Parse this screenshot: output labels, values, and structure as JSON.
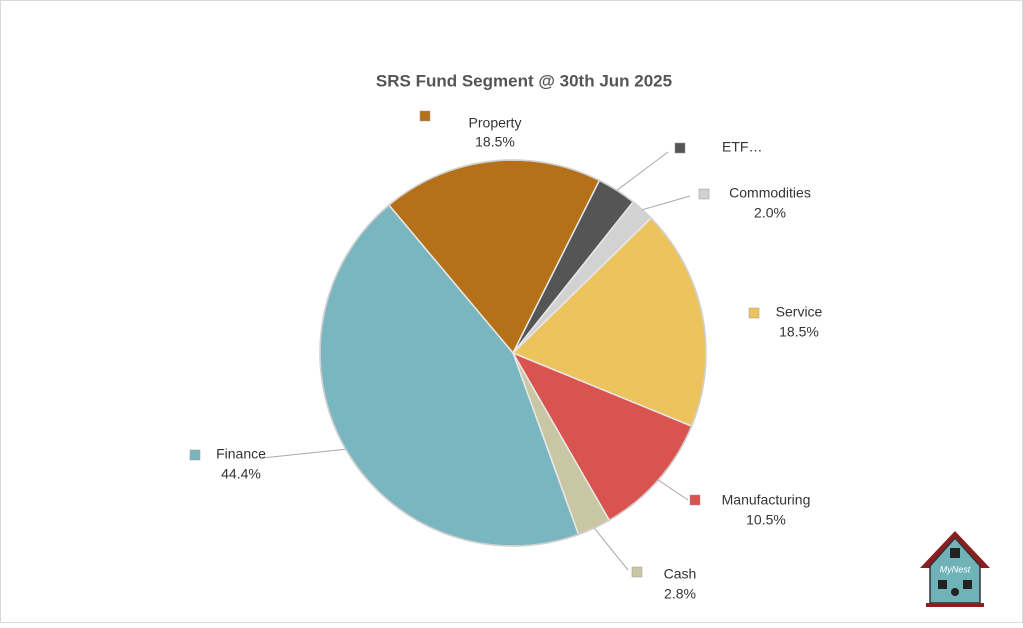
{
  "chart_data": {
    "type": "pie",
    "title": "SRS Fund Segment @ 30th Jun 2025",
    "categories": [
      "Property",
      "ETF…",
      "Commodities",
      "Service",
      "Manufacturing",
      "Cash",
      "Finance"
    ],
    "values": [
      18.5,
      3.3,
      2.0,
      18.5,
      10.5,
      2.8,
      44.4
    ],
    "value_labels": [
      "18.5%",
      null,
      "2.0%",
      "18.5%",
      "10.5%",
      "2.8%",
      "44.4%"
    ],
    "colors": [
      "#b5711a",
      "#555555",
      "#d2d2d2",
      "#ecc35c",
      "#d9534f",
      "#c9c6a3",
      "#7ab6bf"
    ]
  },
  "logo": {
    "text": "MyNest"
  }
}
